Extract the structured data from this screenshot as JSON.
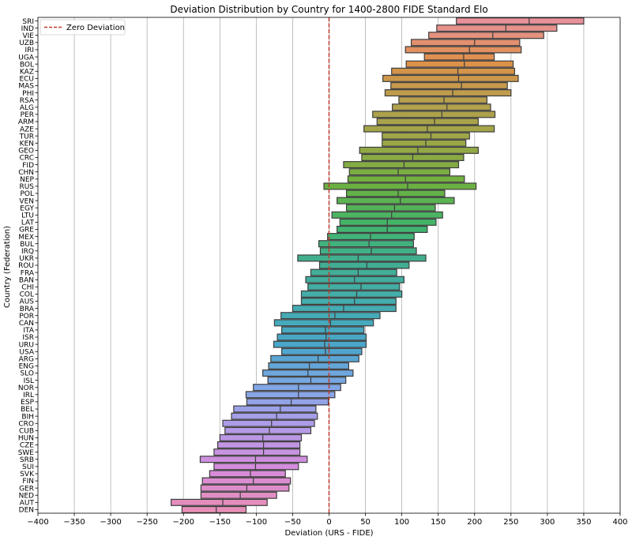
{
  "chart_data": {
    "type": "boxplot-horizontal",
    "title": "Deviation Distribution by Country for 1400-2800 FIDE Standard Elo",
    "xlabel": "Deviation (URS - FIDE)",
    "ylabel": "Country (Federation)",
    "xlim": [
      -400,
      400
    ],
    "xticks": [
      -400,
      -350,
      -300,
      -250,
      -200,
      -150,
      -100,
      -50,
      0,
      50,
      100,
      150,
      200,
      250,
      300,
      350,
      400
    ],
    "xtick_labels": [
      "−400",
      "−350",
      "−300",
      "−250",
      "−200",
      "−150",
      "−100",
      "−50",
      "0",
      "50",
      "100",
      "150",
      "200",
      "250",
      "300",
      "350",
      "400"
    ],
    "grid": "vertical",
    "reference_line": {
      "x": 0,
      "label": "Zero Deviation",
      "color": "#c0392b",
      "style": "dashed"
    },
    "legend": {
      "position": "top-left",
      "entries": [
        "Zero Deviation"
      ]
    },
    "series": [
      {
        "country": "SRI",
        "q1": 175,
        "median": 275,
        "q3": 350
      },
      {
        "country": "IND",
        "q1": 148,
        "median": 243,
        "q3": 313
      },
      {
        "country": "VIE",
        "q1": 137,
        "median": 225,
        "q3": 295
      },
      {
        "country": "UZB",
        "q1": 113,
        "median": 200,
        "q3": 262
      },
      {
        "country": "IRI",
        "q1": 105,
        "median": 193,
        "q3": 264
      },
      {
        "country": "UGA",
        "q1": 131,
        "median": 185,
        "q3": 227
      },
      {
        "country": "BOL",
        "q1": 106,
        "median": 186,
        "q3": 253
      },
      {
        "country": "KAZ",
        "q1": 86,
        "median": 177,
        "q3": 255
      },
      {
        "country": "ECU",
        "q1": 74,
        "median": 178,
        "q3": 260
      },
      {
        "country": "MAS",
        "q1": 85,
        "median": 182,
        "q3": 245
      },
      {
        "country": "PHI",
        "q1": 77,
        "median": 170,
        "q3": 250
      },
      {
        "country": "RSA",
        "q1": 96,
        "median": 158,
        "q3": 217
      },
      {
        "country": "ALG",
        "q1": 87,
        "median": 162,
        "q3": 222
      },
      {
        "country": "PER",
        "q1": 60,
        "median": 155,
        "q3": 228
      },
      {
        "country": "ARM",
        "q1": 66,
        "median": 145,
        "q3": 205
      },
      {
        "country": "AZE",
        "q1": 48,
        "median": 135,
        "q3": 227
      },
      {
        "country": "TUR",
        "q1": 73,
        "median": 140,
        "q3": 193
      },
      {
        "country": "KEN",
        "q1": 73,
        "median": 133,
        "q3": 188
      },
      {
        "country": "GEO",
        "q1": 42,
        "median": 122,
        "q3": 205
      },
      {
        "country": "CRC",
        "q1": 45,
        "median": 115,
        "q3": 185
      },
      {
        "country": "FID",
        "q1": 20,
        "median": 103,
        "q3": 178
      },
      {
        "country": "CHN",
        "q1": 28,
        "median": 95,
        "q3": 166
      },
      {
        "country": "NEP",
        "q1": 26,
        "median": 105,
        "q3": 186
      },
      {
        "country": "RUS",
        "q1": -7,
        "median": 108,
        "q3": 202
      },
      {
        "country": "POL",
        "q1": 24,
        "median": 95,
        "q3": 159
      },
      {
        "country": "VEN",
        "q1": 11,
        "median": 98,
        "q3": 172
      },
      {
        "country": "EGY",
        "q1": 24,
        "median": 90,
        "q3": 146
      },
      {
        "country": "LTU",
        "q1": 4,
        "median": 86,
        "q3": 156
      },
      {
        "country": "LAT",
        "q1": 15,
        "median": 80,
        "q3": 147
      },
      {
        "country": "GRE",
        "q1": 11,
        "median": 80,
        "q3": 135
      },
      {
        "country": "MEX",
        "q1": -2,
        "median": 57,
        "q3": 117
      },
      {
        "country": "BUL",
        "q1": -14,
        "median": 55,
        "q3": 116
      },
      {
        "country": "IRQ",
        "q1": -12,
        "median": 58,
        "q3": 120
      },
      {
        "country": "UKR",
        "q1": -43,
        "median": 40,
        "q3": 133
      },
      {
        "country": "ROU",
        "q1": -13,
        "median": 52,
        "q3": 110
      },
      {
        "country": "FRA",
        "q1": -25,
        "median": 40,
        "q3": 93
      },
      {
        "country": "BAN",
        "q1": -32,
        "median": 35,
        "q3": 103
      },
      {
        "country": "CHI",
        "q1": -29,
        "median": 44,
        "q3": 97
      },
      {
        "country": "COL",
        "q1": -38,
        "median": 38,
        "q3": 100
      },
      {
        "country": "AUS",
        "q1": -38,
        "median": 35,
        "q3": 92
      },
      {
        "country": "BRA",
        "q1": -50,
        "median": 20,
        "q3": 92
      },
      {
        "country": "POR",
        "q1": -66,
        "median": 8,
        "q3": 70
      },
      {
        "country": "CAN",
        "q1": -75,
        "median": 2,
        "q3": 61
      },
      {
        "country": "ITA",
        "q1": -65,
        "median": -5,
        "q3": 48
      },
      {
        "country": "ISR",
        "q1": -71,
        "median": -4,
        "q3": 51
      },
      {
        "country": "URU",
        "q1": -76,
        "median": -6,
        "q3": 51
      },
      {
        "country": "USA",
        "q1": -65,
        "median": -5,
        "q3": 45
      },
      {
        "country": "ARG",
        "q1": -80,
        "median": -15,
        "q3": 41
      },
      {
        "country": "ENG",
        "q1": -83,
        "median": -27,
        "q3": 27
      },
      {
        "country": "SLO",
        "q1": -91,
        "median": -29,
        "q3": 33
      },
      {
        "country": "ISL",
        "q1": -84,
        "median": -25,
        "q3": 23
      },
      {
        "country": "NOR",
        "q1": -104,
        "median": -42,
        "q3": 16
      },
      {
        "country": "IRL",
        "q1": -114,
        "median": -42,
        "q3": 8
      },
      {
        "country": "ESP",
        "q1": -113,
        "median": -52,
        "q3": -1
      },
      {
        "country": "BEL",
        "q1": -131,
        "median": -67,
        "q3": -18
      },
      {
        "country": "BIH",
        "q1": -134,
        "median": -72,
        "q3": -16
      },
      {
        "country": "CRO",
        "q1": -146,
        "median": -79,
        "q3": -20
      },
      {
        "country": "CUB",
        "q1": -143,
        "median": -82,
        "q3": -25
      },
      {
        "country": "HUN",
        "q1": -150,
        "median": -91,
        "q3": -38
      },
      {
        "country": "CZE",
        "q1": -153,
        "median": -90,
        "q3": -40
      },
      {
        "country": "SWE",
        "q1": -158,
        "median": -90,
        "q3": -40
      },
      {
        "country": "SRB",
        "q1": -177,
        "median": -101,
        "q3": -30
      },
      {
        "country": "SUI",
        "q1": -158,
        "median": -101,
        "q3": -42
      },
      {
        "country": "SVK",
        "q1": -164,
        "median": -108,
        "q3": -60
      },
      {
        "country": "FIN",
        "q1": -174,
        "median": -104,
        "q3": -53
      },
      {
        "country": "GER",
        "q1": -176,
        "median": -113,
        "q3": -55
      },
      {
        "country": "NED",
        "q1": -176,
        "median": -122,
        "q3": -72
      },
      {
        "country": "AUT",
        "q1": -217,
        "median": -146,
        "q3": -85
      },
      {
        "country": "DEN",
        "q1": -202,
        "median": -155,
        "q3": -114
      }
    ],
    "palette": [
      "#e8919a",
      "#de9048",
      "#b5a04e",
      "#9aa747",
      "#6eb13f",
      "#41b56b",
      "#41ae94",
      "#44acb0",
      "#4aa6cc",
      "#81a7e6",
      "#b39ce8",
      "#d68cdb",
      "#e78fb8"
    ]
  }
}
